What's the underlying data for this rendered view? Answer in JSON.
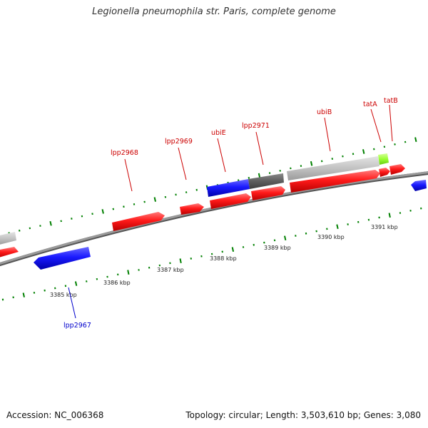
{
  "title": "Legionella pneumophila str. Paris, complete genome",
  "footer": {
    "accession": "Accession: NC_006368",
    "summary": "Topology: circular; Length: 3,503,610 bp; Genes: 3,080"
  },
  "colors": {
    "forward_gene": "#ff0000",
    "reverse_gene": "#0000ff",
    "backbone": "#808080",
    "tick": "#008000",
    "rna": "#c0c0c0",
    "pseudo": "#666666",
    "highlight": "#99ff33"
  },
  "scale": {
    "unit": "kbp",
    "ticks": [
      "3385 kbp",
      "3386 kbp",
      "3387 kbp",
      "3388 kbp",
      "3389 kbp",
      "3390 kbp",
      "3391 kbp"
    ]
  },
  "labeled_genes": [
    {
      "name": "lpp2967",
      "strand": "reverse",
      "color": "#0000cc"
    },
    {
      "name": "lpp2968",
      "strand": "forward",
      "color": "#cc0000"
    },
    {
      "name": "lpp2969",
      "strand": "forward",
      "color": "#cc0000"
    },
    {
      "name": "ubiE",
      "strand": "forward",
      "color": "#cc0000"
    },
    {
      "name": "lpp2971",
      "strand": "forward",
      "color": "#cc0000"
    },
    {
      "name": "ubiB",
      "strand": "forward",
      "color": "#cc0000"
    },
    {
      "name": "tatA",
      "strand": "forward",
      "color": "#cc0000"
    },
    {
      "name": "tatB",
      "strand": "forward",
      "color": "#cc0000"
    }
  ]
}
